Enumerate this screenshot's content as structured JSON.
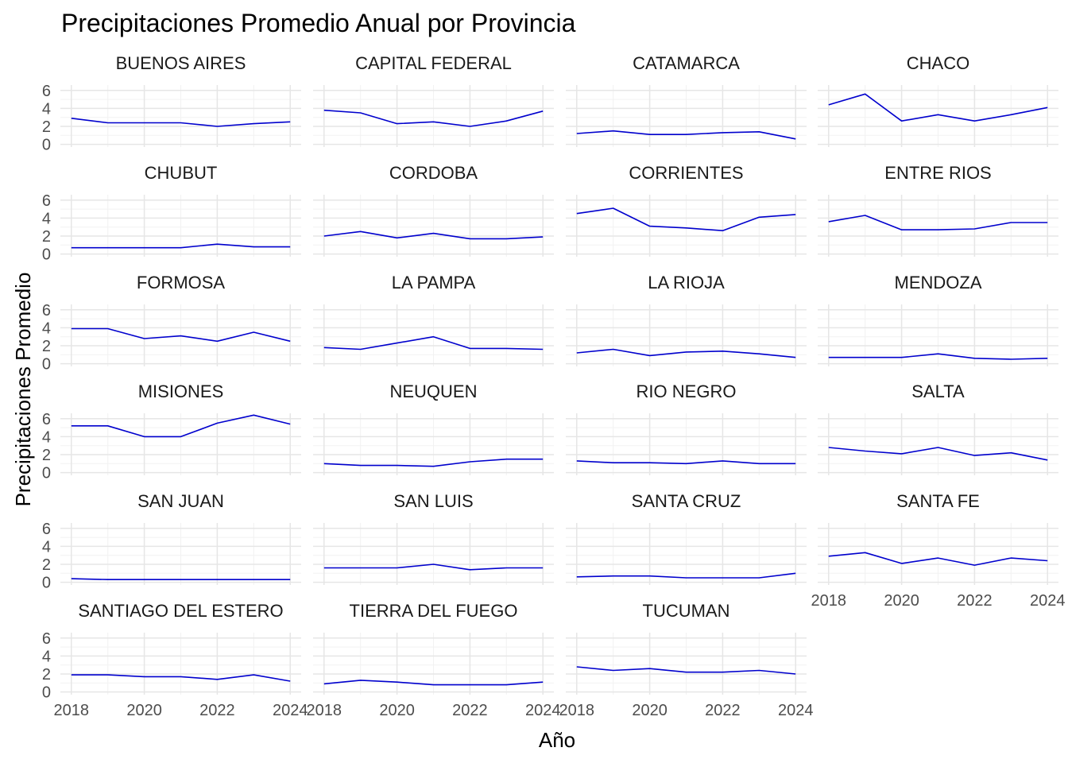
{
  "chart_data": {
    "type": "line",
    "title": "Precipitaciones Promedio Anual por Provincia",
    "xlabel": "Año",
    "ylabel": "Precipitaciones Promedio",
    "x": [
      2018,
      2019,
      2020,
      2021,
      2022,
      2023,
      2024
    ],
    "x_ticks": [
      2018,
      2020,
      2022,
      2024
    ],
    "y_ticks": [
      0,
      2,
      4,
      6
    ],
    "xlim": [
      2017.7,
      2024.3
    ],
    "ylim": [
      -0.3,
      6.6
    ],
    "grid": true,
    "line_color": "#0000cd",
    "panels": [
      {
        "name": "BUENOS AIRES",
        "values": [
          2.9,
          2.4,
          2.4,
          2.4,
          2.0,
          2.3,
          2.5
        ]
      },
      {
        "name": "CAPITAL FEDERAL",
        "values": [
          3.8,
          3.5,
          2.3,
          2.5,
          2.0,
          2.6,
          3.7
        ]
      },
      {
        "name": "CATAMARCA",
        "values": [
          1.2,
          1.5,
          1.1,
          1.1,
          1.3,
          1.4,
          0.6
        ]
      },
      {
        "name": "CHACO",
        "values": [
          4.4,
          5.6,
          2.6,
          3.3,
          2.6,
          3.3,
          4.1
        ]
      },
      {
        "name": "CHUBUT",
        "values": [
          0.7,
          0.7,
          0.7,
          0.7,
          1.1,
          0.8,
          0.8
        ]
      },
      {
        "name": "CORDOBA",
        "values": [
          2.0,
          2.5,
          1.8,
          2.3,
          1.7,
          1.7,
          1.9
        ]
      },
      {
        "name": "CORRIENTES",
        "values": [
          4.5,
          5.1,
          3.1,
          2.9,
          2.6,
          4.1,
          4.4
        ]
      },
      {
        "name": "ENTRE RIOS",
        "values": [
          3.6,
          4.3,
          2.7,
          2.7,
          2.8,
          3.5,
          3.5
        ]
      },
      {
        "name": "FORMOSA",
        "values": [
          3.9,
          3.9,
          2.8,
          3.1,
          2.5,
          3.5,
          2.5
        ]
      },
      {
        "name": "LA PAMPA",
        "values": [
          1.8,
          1.6,
          2.3,
          3.0,
          1.7,
          1.7,
          1.6
        ]
      },
      {
        "name": "LA RIOJA",
        "values": [
          1.2,
          1.6,
          0.9,
          1.3,
          1.4,
          1.1,
          0.7
        ]
      },
      {
        "name": "MENDOZA",
        "values": [
          0.7,
          0.7,
          0.7,
          1.1,
          0.6,
          0.5,
          0.6
        ]
      },
      {
        "name": "MISIONES",
        "values": [
          5.2,
          5.2,
          4.0,
          4.0,
          5.5,
          6.4,
          5.4
        ]
      },
      {
        "name": "NEUQUEN",
        "values": [
          1.0,
          0.8,
          0.8,
          0.7,
          1.2,
          1.5,
          1.5
        ]
      },
      {
        "name": "RIO NEGRO",
        "values": [
          1.3,
          1.1,
          1.1,
          1.0,
          1.3,
          1.0,
          1.0
        ]
      },
      {
        "name": "SALTA",
        "values": [
          2.8,
          2.4,
          2.1,
          2.8,
          1.9,
          2.2,
          1.4
        ]
      },
      {
        "name": "SAN JUAN",
        "values": [
          0.4,
          0.3,
          0.3,
          0.3,
          0.3,
          0.3,
          0.3
        ]
      },
      {
        "name": "SAN LUIS",
        "values": [
          1.6,
          1.6,
          1.6,
          2.0,
          1.4,
          1.6,
          1.6
        ]
      },
      {
        "name": "SANTA CRUZ",
        "values": [
          0.6,
          0.7,
          0.7,
          0.5,
          0.5,
          0.5,
          1.0
        ]
      },
      {
        "name": "SANTA FE",
        "values": [
          2.9,
          3.3,
          2.1,
          2.7,
          1.9,
          2.7,
          2.4
        ]
      },
      {
        "name": "SANTIAGO DEL ESTERO",
        "values": [
          1.9,
          1.9,
          1.7,
          1.7,
          1.4,
          1.9,
          1.2
        ]
      },
      {
        "name": "TIERRA DEL FUEGO",
        "values": [
          0.9,
          1.3,
          1.1,
          0.8,
          0.8,
          0.8,
          1.1
        ]
      },
      {
        "name": "TUCUMAN",
        "values": [
          2.8,
          2.4,
          2.6,
          2.2,
          2.2,
          2.4,
          2.0
        ]
      }
    ]
  }
}
